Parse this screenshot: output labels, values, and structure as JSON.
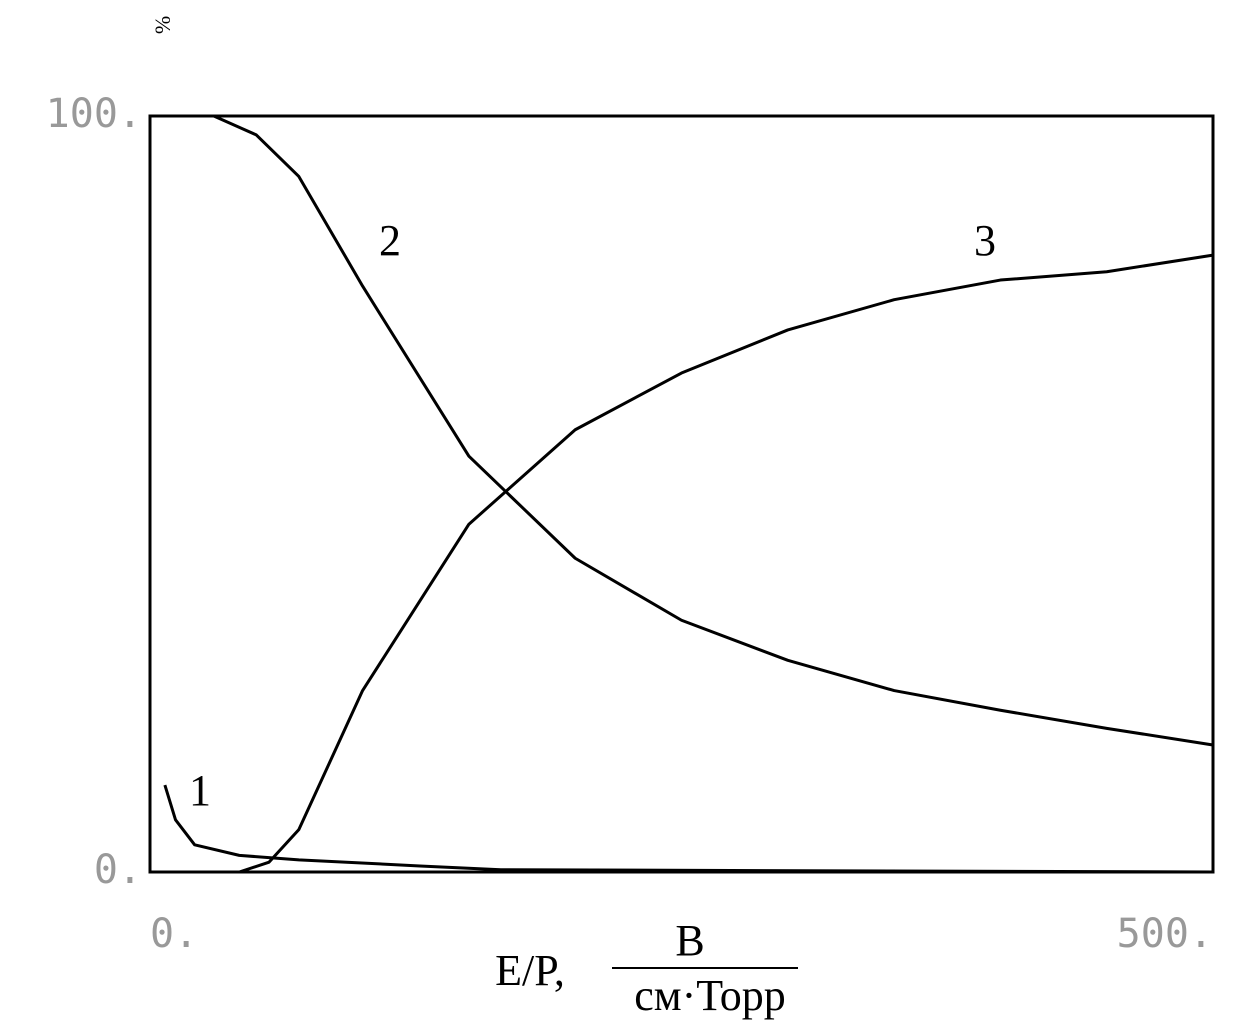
{
  "chart_data": {
    "type": "line",
    "y_label": "%",
    "x_label": "E/P,",
    "x_unit_numerator": "В",
    "x_unit_denominator": "см·Торр",
    "xlim": [
      0,
      500
    ],
    "xticks": [
      {
        "value": 0,
        "label": "0."
      },
      {
        "value": 500,
        "label": "500."
      }
    ],
    "ylim": [
      0,
      100
    ],
    "yticks": [
      {
        "value": 0,
        "label": "0."
      },
      {
        "value": 100,
        "label": "100."
      }
    ],
    "grid": false,
    "series": [
      {
        "name": "1",
        "color": "#000000",
        "x": [
          7,
          12,
          21,
          42,
          70,
          127,
          165,
          500
        ],
        "values": [
          11.5,
          6.9,
          3.6,
          2.2,
          1.6,
          0.8,
          0.3,
          0
        ]
      },
      {
        "name": "2",
        "color": "#000000",
        "x": [
          5,
          30,
          50,
          70,
          100,
          150,
          200,
          250,
          300,
          350,
          400,
          450,
          500
        ],
        "values": [
          100,
          100,
          97.5,
          92,
          77.5,
          55,
          41.5,
          33.3,
          28,
          24,
          21.4,
          19,
          16.8
        ]
      },
      {
        "name": "3",
        "color": "#000000",
        "x": [
          5,
          42,
          56,
          70,
          100,
          150,
          200,
          250,
          300,
          350,
          400,
          450,
          500
        ],
        "values": [
          0,
          0,
          1.3,
          5.6,
          24,
          46,
          58.5,
          66,
          71.7,
          75.7,
          78.3,
          79.4,
          81.6
        ]
      }
    ]
  }
}
